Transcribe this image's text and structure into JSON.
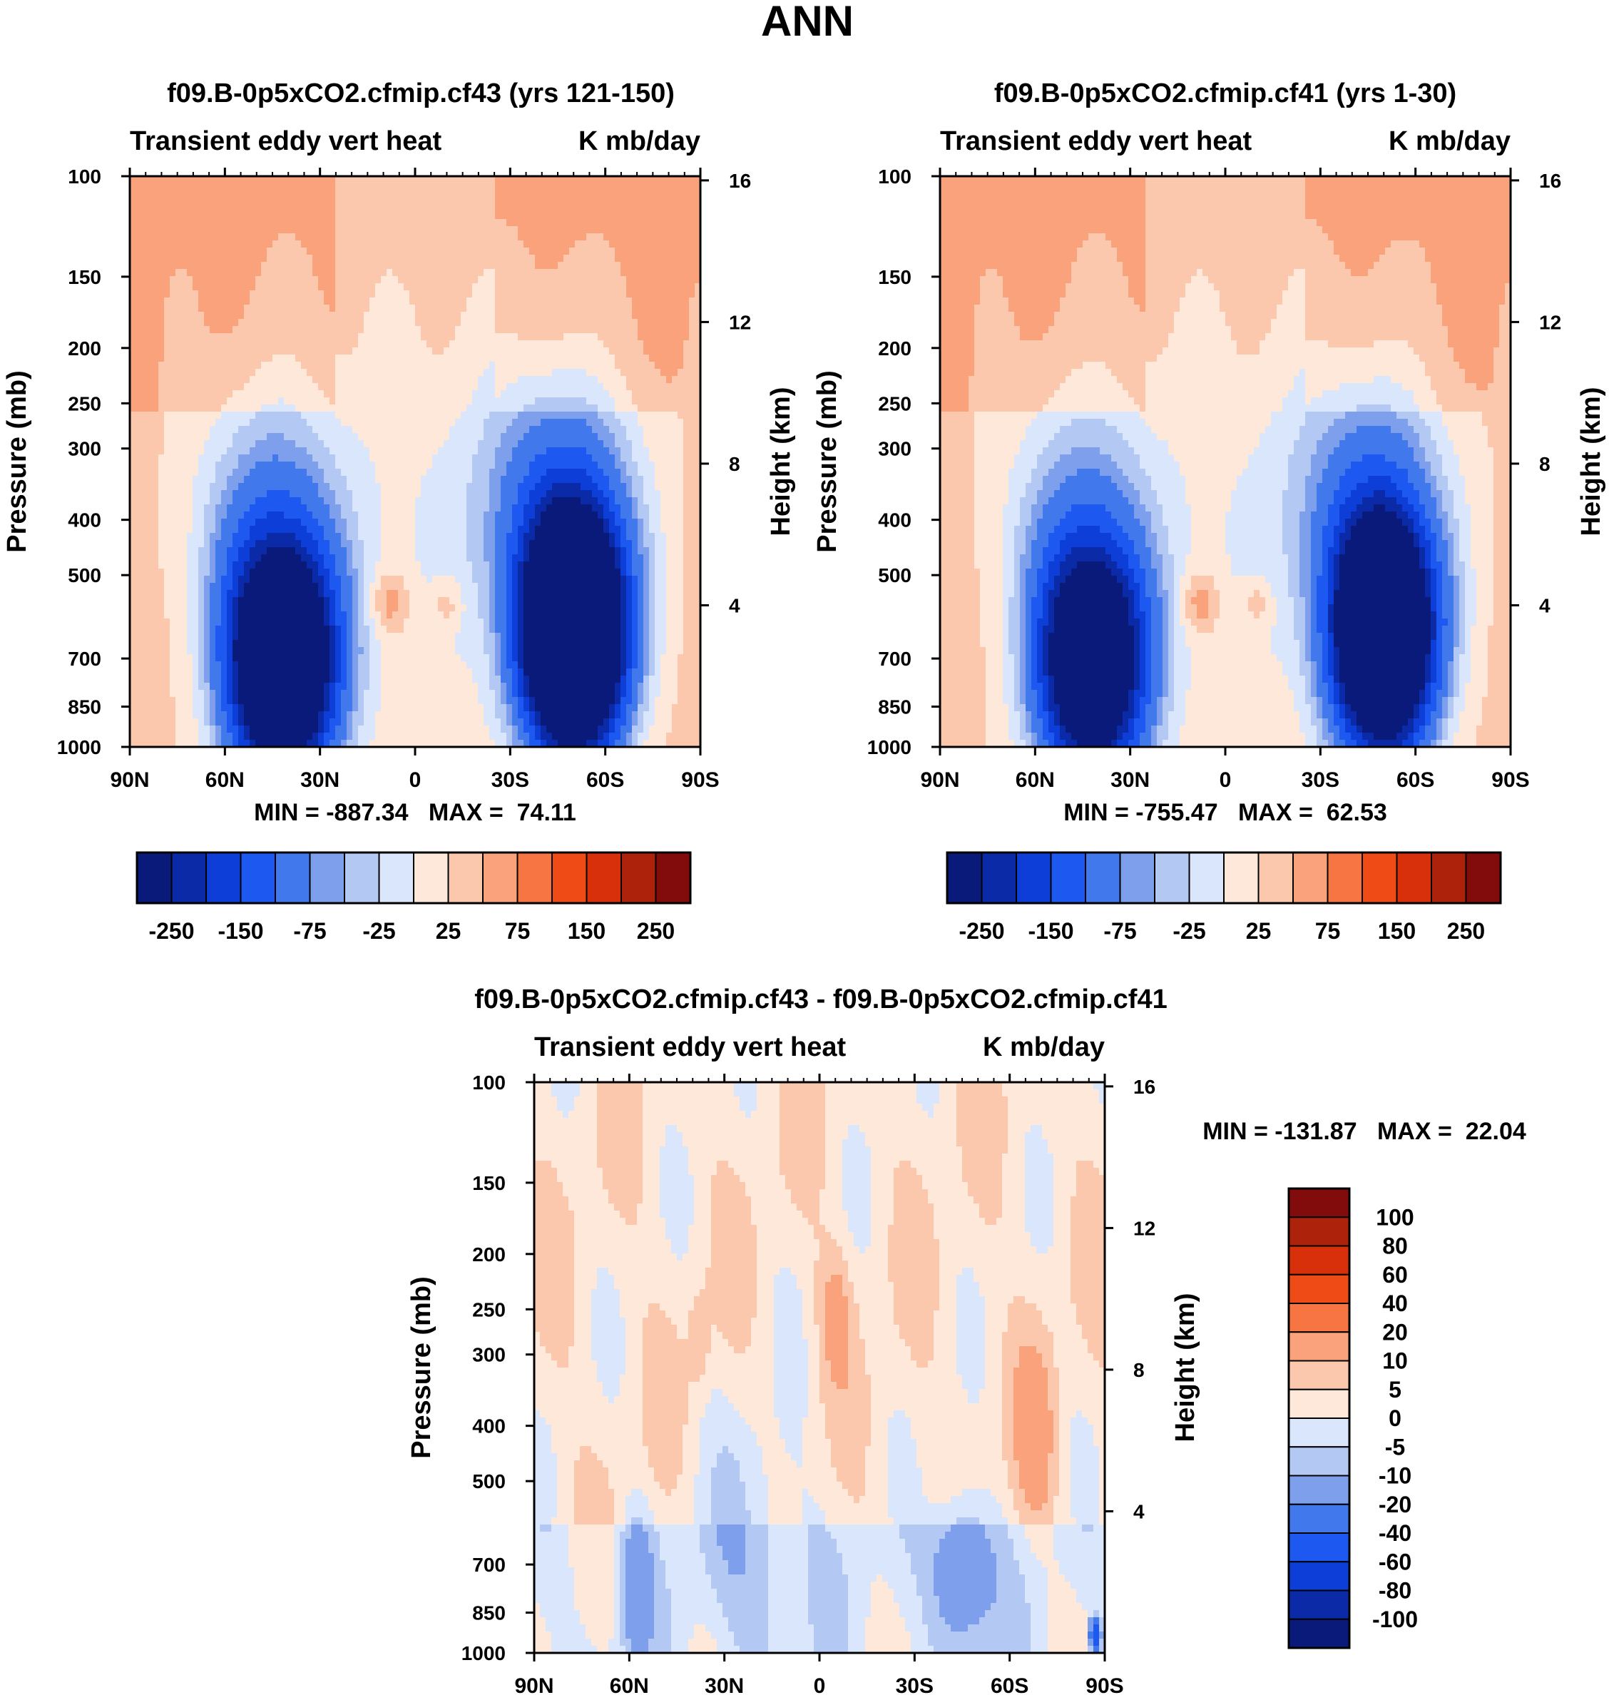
{
  "page": {
    "title": "ANN"
  },
  "colors": {
    "main": [
      "#0a1a7a",
      "#0b2aa8",
      "#0d3fd8",
      "#1d58f0",
      "#4179ec",
      "#7d9fec",
      "#b4c8f4",
      "#d9e6fb",
      "#fde8da",
      "#fbc8ad",
      "#f9a27b",
      "#f77543",
      "#ee4b17",
      "#d9300c",
      "#ad220a",
      "#820b0b"
    ],
    "diff": [
      "#0a1a7a",
      "#0b2aa8",
      "#0d3fd8",
      "#1d58f0",
      "#4179ec",
      "#7d9fec",
      "#b4c8f4",
      "#d9e6fb",
      "#fde8da",
      "#fbc8ad",
      "#f9a27b",
      "#f77543",
      "#ee4b17",
      "#d9300c",
      "#ad220a",
      "#820b0b"
    ]
  },
  "chart_data": [
    {
      "type": "contour",
      "title": "f09.B-0p5xCO2.cfmip.cf43 (yrs 121-150)",
      "left_label": "Transient eddy vert heat",
      "right_label": "K mb/day",
      "ylabel": "Pressure (mb)",
      "ylabel2": "Height (km)",
      "x_ticks": [
        "90N",
        "60N",
        "30N",
        "0",
        "30S",
        "60S",
        "90S"
      ],
      "y_ticks": [
        "100",
        "150",
        "200",
        "250",
        "300",
        "400",
        "500",
        "700",
        "850",
        "1000"
      ],
      "y2_ticks": [
        "16",
        "12",
        "8",
        "4"
      ],
      "min_max_text": "MIN = -887.34   MAX =  74.11",
      "min": -887.34,
      "max": 74.11,
      "colorbar_labels": [
        "-250",
        "-150",
        "-75",
        "-25",
        "25",
        "75",
        "150",
        "250"
      ],
      "levels": [
        -300,
        -250,
        -200,
        -150,
        -100,
        -75,
        -50,
        -25,
        0,
        25,
        50,
        75,
        100,
        150,
        200,
        250,
        300
      ],
      "features": [
        {
          "lat": 42,
          "p": 720,
          "value": -700
        },
        {
          "lat": -50,
          "p": 640,
          "value": -887.34
        },
        {
          "lat": -10,
          "p": 560,
          "value": 40
        },
        {
          "lat": 8,
          "p": 560,
          "value": 74.11
        }
      ]
    },
    {
      "type": "contour",
      "title": "f09.B-0p5xCO2.cfmip.cf41 (yrs 1-30)",
      "left_label": "Transient eddy vert heat",
      "right_label": "K mb/day",
      "ylabel": "Pressure (mb)",
      "ylabel2": "Height (km)",
      "x_ticks": [
        "90N",
        "60N",
        "30N",
        "0",
        "30S",
        "60S",
        "90S"
      ],
      "y_ticks": [
        "100",
        "150",
        "200",
        "250",
        "300",
        "400",
        "500",
        "700",
        "850",
        "1000"
      ],
      "y2_ticks": [
        "16",
        "12",
        "8",
        "4"
      ],
      "min_max_text": "MIN = -755.47   MAX =  62.53",
      "min": -755.47,
      "max": 62.53,
      "colorbar_labels": [
        "-250",
        "-150",
        "-75",
        "-25",
        "25",
        "75",
        "150",
        "250"
      ],
      "levels": [
        -300,
        -250,
        -200,
        -150,
        -100,
        -75,
        -50,
        -25,
        0,
        25,
        50,
        75,
        100,
        150,
        200,
        250,
        300
      ],
      "features": [
        {
          "lat": 42,
          "p": 720,
          "value": -600
        },
        {
          "lat": -50,
          "p": 640,
          "value": -755.47
        },
        {
          "lat": -10,
          "p": 560,
          "value": 35
        },
        {
          "lat": 8,
          "p": 560,
          "value": 62.53
        }
      ]
    },
    {
      "type": "contour",
      "title": "f09.B-0p5xCO2.cfmip.cf43 - f09.B-0p5xCO2.cfmip.cf41",
      "left_label": "Transient eddy vert heat",
      "right_label": "K mb/day",
      "ylabel": "Pressure (mb)",
      "ylabel2": "Height (km)",
      "x_ticks": [
        "90N",
        "60N",
        "30N",
        "0",
        "30S",
        "60S",
        "90S"
      ],
      "y_ticks": [
        "100",
        "150",
        "200",
        "250",
        "300",
        "400",
        "500",
        "700",
        "850",
        "1000"
      ],
      "y2_ticks": [
        "16",
        "12",
        "8",
        "4"
      ],
      "min_max_text": "MIN = -131.87   MAX =  22.04",
      "min": -131.87,
      "max": 22.04,
      "colorbar_labels": [
        "100",
        "80",
        "60",
        "40",
        "20",
        "10",
        "5",
        "0",
        "-5",
        "-10",
        "-20",
        "-40",
        "-60",
        "-80",
        "-100"
      ],
      "levels": [
        -100,
        -80,
        -60,
        -40,
        -20,
        -10,
        -5,
        0,
        5,
        10,
        20,
        40,
        60,
        80,
        100
      ],
      "features": [
        {
          "lat": -45,
          "p": 720,
          "value": -20
        },
        {
          "lat": 58,
          "p": 760,
          "value": -15
        },
        {
          "lat": -68,
          "p": 420,
          "value": 10
        },
        {
          "lat": -5,
          "p": 250,
          "value": 8
        },
        {
          "lat": 38,
          "p": 280,
          "value": 6
        },
        {
          "lat": -87,
          "p": 930,
          "value": -131.87
        }
      ]
    }
  ]
}
